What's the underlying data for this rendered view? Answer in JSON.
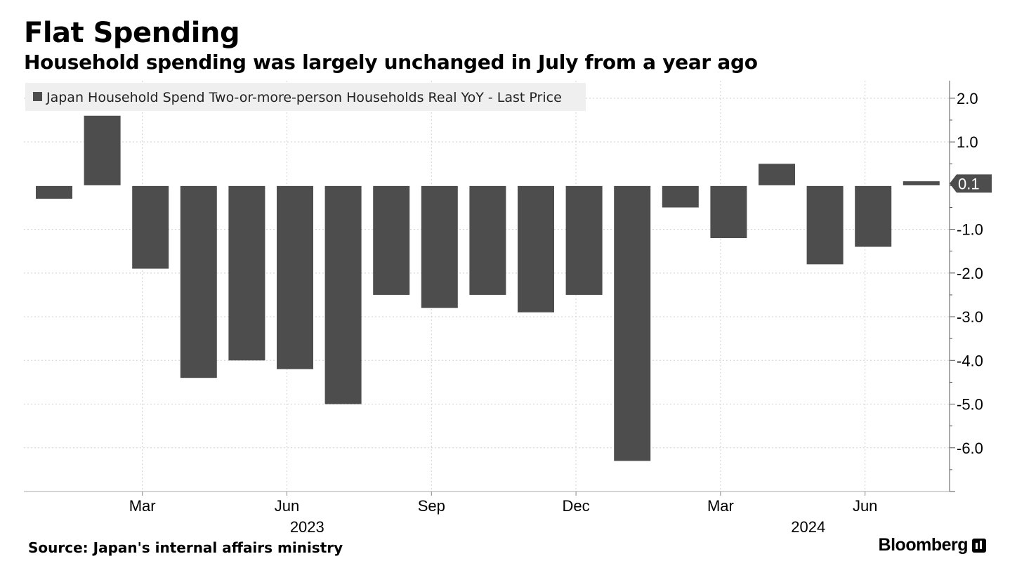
{
  "header": {
    "title": "Flat Spending",
    "subtitle": "Household spending was largely unchanged in July from a year ago"
  },
  "footer": {
    "source": "Source: Japan's internal affairs ministry",
    "brand": "Bloomberg"
  },
  "colors": {
    "bar": "#4d4d4d",
    "grid": "#d0d0d0",
    "legend_bg": "#efefef",
    "last_price_bg": "#4d4d4d"
  },
  "chart_data": {
    "type": "bar",
    "legend": "Japan Household Spend Two-or-more-person Households Real YoY - Last Price",
    "legend_placement": "top-left",
    "x": [
      "2023-01",
      "2023-02",
      "2023-03",
      "2023-04",
      "2023-05",
      "2023-06",
      "2023-07",
      "2023-08",
      "2023-09",
      "2023-10",
      "2023-11",
      "2023-12",
      "2024-01",
      "2024-02",
      "2024-03",
      "2024-04",
      "2024-05",
      "2024-06",
      "2024-07"
    ],
    "values": [
      -0.3,
      1.6,
      -1.9,
      -4.4,
      -4.0,
      -4.2,
      -5.0,
      -2.5,
      -2.8,
      -2.5,
      -2.9,
      -2.5,
      -6.3,
      -0.5,
      -1.2,
      0.5,
      -1.8,
      -1.4,
      0.1
    ],
    "ylim": [
      -7.0,
      2.4
    ],
    "yticks": [
      2.0,
      1.0,
      -1.0,
      -2.0,
      -3.0,
      -4.0,
      -5.0,
      -6.0
    ],
    "ytick_labels": [
      "2.0",
      "1.0",
      "-1.0",
      "-2.0",
      "-3.0",
      "-4.0",
      "-5.0",
      "-6.0"
    ],
    "xtick_labels": [
      {
        "index": 2,
        "label": "Mar"
      },
      {
        "index": 5,
        "label": "Jun"
      },
      {
        "index": 8,
        "label": "Sep"
      },
      {
        "index": 11,
        "label": "Dec"
      },
      {
        "index": 14,
        "label": "Mar"
      },
      {
        "index": 17,
        "label": "Jun"
      }
    ],
    "year_labels": [
      {
        "index": 5.5,
        "label": "2023"
      },
      {
        "index": 15.9,
        "label": "2024"
      }
    ],
    "last_value_label": "0.1",
    "y_axis_side": "right",
    "grid": true
  }
}
